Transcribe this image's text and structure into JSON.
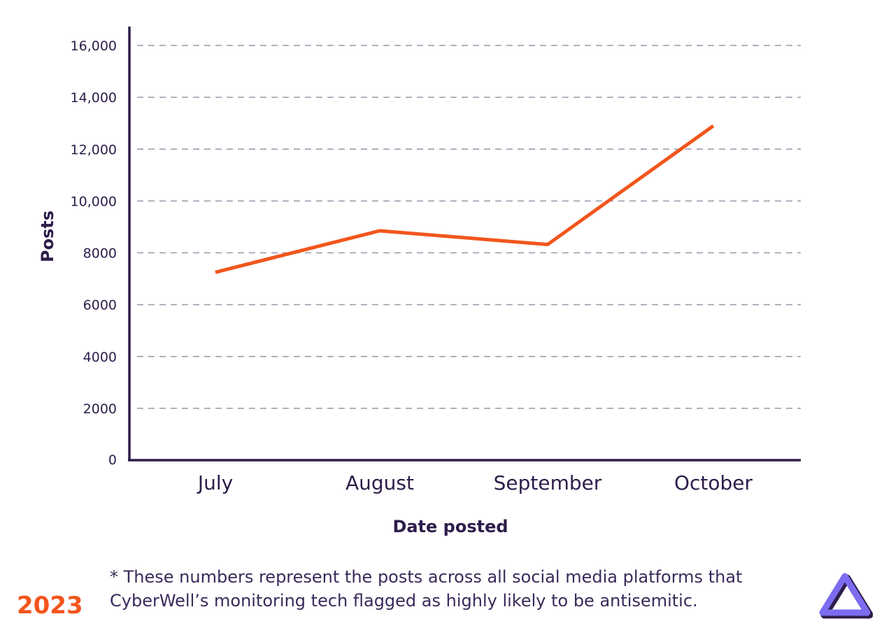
{
  "chart_data": {
    "type": "line",
    "categories": [
      "July",
      "August",
      "September",
      "October"
    ],
    "series": [
      {
        "values": [
          7250,
          8850,
          8320,
          12900
        ]
      }
    ],
    "xlabel": "Date posted",
    "ylabel": "Posts",
    "ylim": [
      0,
      16000
    ],
    "y_ticks": [
      0,
      2000,
      4000,
      6000,
      8000,
      10000,
      12000,
      14000,
      16000
    ],
    "y_tick_labels": [
      "0",
      "2000",
      "4000",
      "6000",
      "8000",
      "10,000",
      "12,000",
      "14,000",
      "16,000"
    ],
    "grid": "horizontal dashed",
    "line_color": "#f2561d",
    "axis_color": "#2d1d4a"
  },
  "footnote": {
    "line1": "* These numbers represent the posts across all social media platforms that",
    "line2": "CyberWell’s monitoring tech flagged as highly likely to be antisemitic."
  },
  "year_label": "2023",
  "logo": {
    "icon": "cyberwell-triangle-logo-icon",
    "colors": [
      "#7b6cf0",
      "#2d1d4a"
    ]
  }
}
